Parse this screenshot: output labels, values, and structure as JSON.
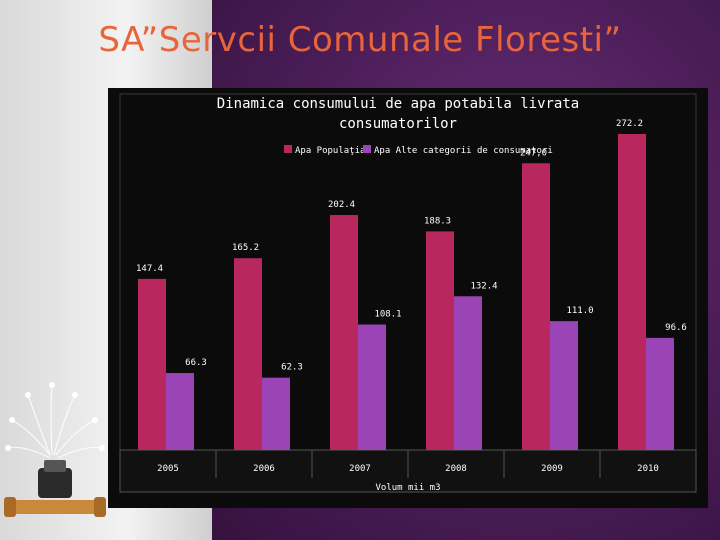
{
  "slide": {
    "title": "SA”Servcii Comunale Floresti”"
  },
  "chart_data": {
    "type": "bar",
    "title": "Dinamica consumului de apa potabila livrata consumatorilor",
    "title_lines": [
      "Dinamica consumului de apa potabila livrata",
      "consumatorilor"
    ],
    "xlabel": "Volum mii m3",
    "ylabel": "",
    "categories": [
      "2005",
      "2006",
      "2007",
      "2008",
      "2009",
      "2010"
    ],
    "series": [
      {
        "name": "Apa Populaţia",
        "color": "#b8285e",
        "values": [
          147.4,
          165.2,
          202.4,
          188.3,
          247.0,
          272.2
        ],
        "labels": [
          "147.4",
          "165.2",
          "202.4",
          "188.3",
          "247,0",
          "272.2"
        ]
      },
      {
        "name": "Apa Alte categorii de consumatori",
        "color": "#9b44b5",
        "values": [
          66.3,
          62.3,
          108.1,
          132.4,
          111.0,
          96.6
        ],
        "labels": [
          "66.3",
          "62.3",
          "108.1",
          "132.4",
          "111.0",
          "96.6"
        ]
      }
    ],
    "ylim": [
      0,
      272.2
    ],
    "legend_position": "top",
    "grid": false
  }
}
